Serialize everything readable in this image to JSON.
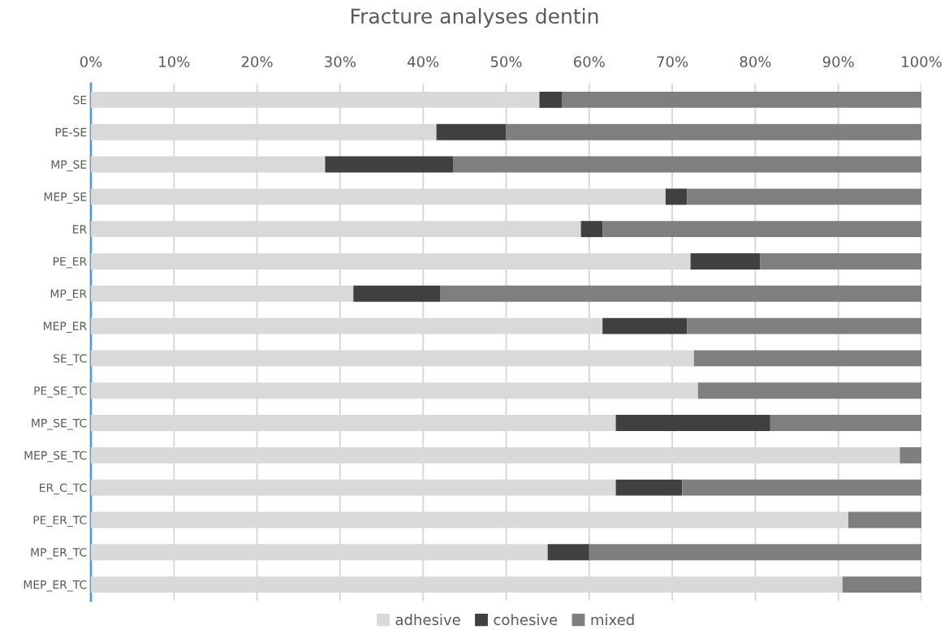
{
  "chart_data": {
    "type": "bar",
    "title": "Fracture analyses dentin",
    "orientation": "horizontal",
    "stacked": true,
    "categories": [
      "SE",
      "PE-SE",
      "MP_SE",
      "MEP_SE",
      "ER",
      "PE_ER",
      "MP_ER",
      "MEP_ER",
      "SE_TC",
      "PE_SE_TC",
      "MP_SE_TC",
      "MEP_SE_TC",
      "ER_C_TC",
      "PE_ER_TC",
      "MP_ER_TC",
      "MEP_ER_TC"
    ],
    "series": [
      {
        "name": "adhesive",
        "color": "#d9d9d9",
        "values": [
          54.0,
          41.6,
          28.2,
          69.2,
          59.0,
          72.2,
          31.6,
          61.6,
          72.6,
          73.1,
          63.2,
          97.4,
          63.2,
          91.2,
          55.0,
          90.5
        ]
      },
      {
        "name": "cohesive",
        "color": "#404040",
        "values": [
          2.7,
          8.4,
          15.4,
          2.6,
          2.6,
          8.4,
          10.5,
          10.2,
          0,
          0,
          18.6,
          0,
          8.0,
          0,
          5.0,
          0
        ]
      },
      {
        "name": "mixed",
        "color": "#7f7f7f",
        "values": [
          43.3,
          50.0,
          56.4,
          28.2,
          38.4,
          19.4,
          57.9,
          28.2,
          27.4,
          26.9,
          18.2,
          2.6,
          28.8,
          8.8,
          40.0,
          9.5
        ]
      }
    ],
    "xlim": [
      0,
      100
    ],
    "xticks": [
      {
        "value": 0,
        "label": "0%"
      },
      {
        "value": 10,
        "label": "10%"
      },
      {
        "value": 20,
        "label": "20%"
      },
      {
        "value": 30,
        "label": "30%"
      },
      {
        "value": 40,
        "label": "40%"
      },
      {
        "value": 50,
        "label": "50%"
      },
      {
        "value": 60,
        "label": "60%"
      },
      {
        "value": 70,
        "label": "70%"
      },
      {
        "value": 80,
        "label": "80%"
      },
      {
        "value": 90,
        "label": "90%"
      },
      {
        "value": 100,
        "label": "100%"
      }
    ],
    "grid": "x",
    "legend": "bottom"
  }
}
